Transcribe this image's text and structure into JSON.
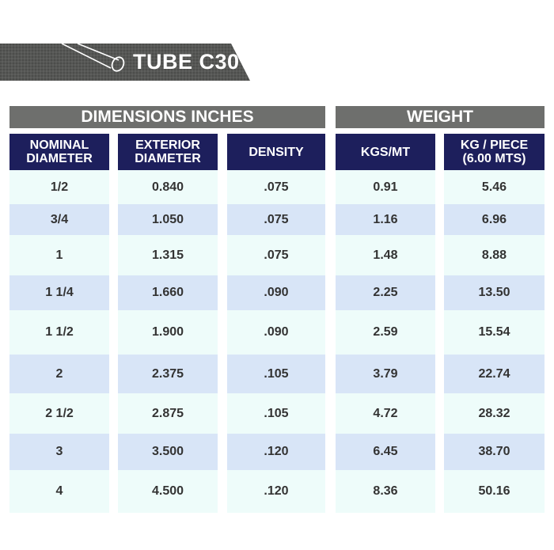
{
  "banner": {
    "title": "TUBE C30"
  },
  "groups": {
    "dimensions": "DIMENSIONS INCHES",
    "weight": "WEIGHT"
  },
  "columns": [
    "NOMINAL\nDIAMETER",
    "EXTERIOR\nDIAMETER",
    "DENSITY",
    "KGS/MT",
    "KG / PIECE\n(6.00 MTS)"
  ],
  "rows": [
    [
      "1/2",
      "0.840",
      ".075",
      "0.91",
      "5.46"
    ],
    [
      "3/4",
      "1.050",
      ".075",
      "1.16",
      "6.96"
    ],
    [
      "1",
      "1.315",
      ".075",
      "1.48",
      "8.88"
    ],
    [
      "1 1/4",
      "1.660",
      ".090",
      "2.25",
      "13.50"
    ],
    [
      "1 1/2",
      "1.900",
      ".090",
      "2.59",
      "15.54"
    ],
    [
      "2",
      "2.375",
      ".105",
      "3.79",
      "22.74"
    ],
    [
      "2 1/2",
      "2.875",
      ".105",
      "4.72",
      "28.32"
    ],
    [
      "3",
      "3.500",
      ".120",
      "6.45",
      "38.70"
    ],
    [
      "4",
      "4.500",
      ".120",
      "8.36",
      "50.16"
    ]
  ],
  "colors": {
    "banner": "#555654",
    "group_header": "#6e6f6d",
    "column_header": "#1d1f5c",
    "row_light": "#eefcfa",
    "row_dark": "#d8e5f7"
  }
}
